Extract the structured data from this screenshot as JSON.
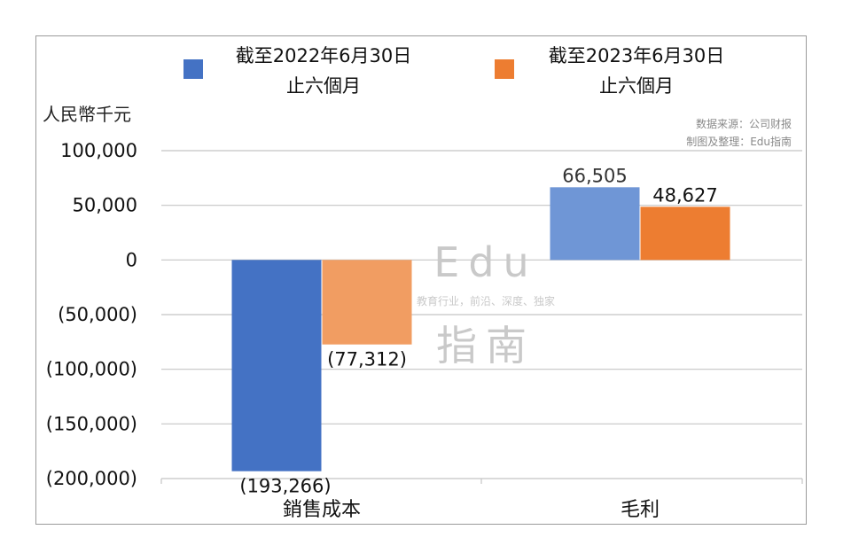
{
  "chart_data": {
    "type": "bar",
    "categories": [
      "銷售成本",
      "毛利"
    ],
    "series": [
      {
        "name": "截至2022年6月30日\n止六個月",
        "color": "#4472C4",
        "values": [
          -193266,
          66505
        ],
        "labels": [
          "(193,266)",
          "66,505"
        ]
      },
      {
        "name": "截至2023年6月30日\n止六個月",
        "color": "#ED7D31",
        "values": [
          -77312,
          48627
        ],
        "labels": [
          "(77,312)",
          "48,627"
        ]
      }
    ],
    "ylabel": "人民幣千元",
    "ylim": [
      -200000,
      100000
    ],
    "yticks": [
      100000,
      50000,
      0,
      -50000,
      -100000,
      -150000,
      -200000
    ],
    "ytick_labels": [
      "100,000",
      "50,000",
      "0",
      "(50,000)",
      "(100,000)",
      "(150,000)",
      "(200,000)"
    ],
    "grid": true,
    "legend": "top"
  },
  "source_note": [
    "数据来源：公司财报",
    "制图及整理：Edu指南"
  ],
  "watermark": {
    "line1": "Edu",
    "tagline": "教育行业，前沿、深度、独家",
    "line2": "指南"
  }
}
